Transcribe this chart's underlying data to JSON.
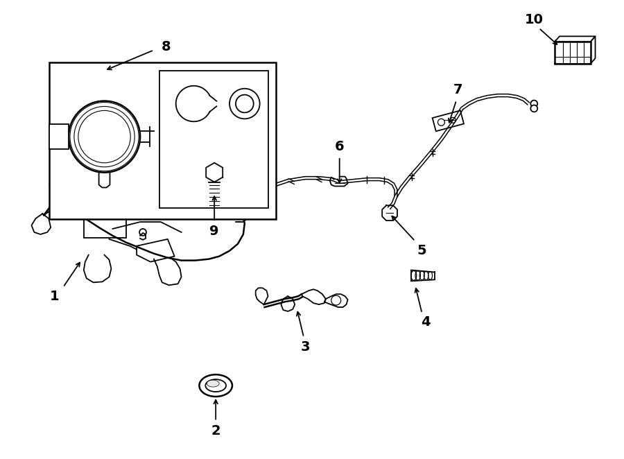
{
  "background_color": "#ffffff",
  "line_color": "#000000",
  "fig_width": 9.0,
  "fig_height": 6.62,
  "dpi": 100
}
